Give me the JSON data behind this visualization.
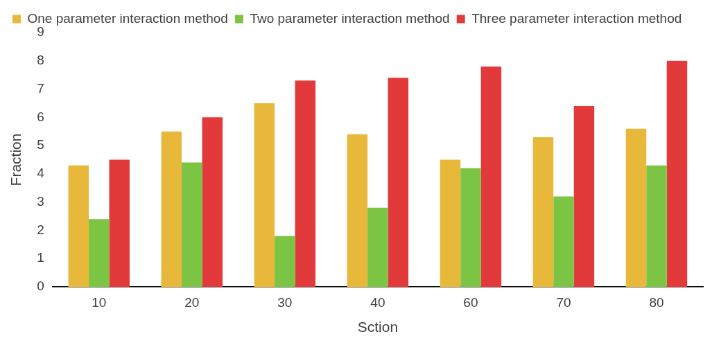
{
  "chart_data": {
    "type": "bar",
    "xlabel": "Sction",
    "ylabel": "Fraction",
    "categories": [
      "10",
      "20",
      "30",
      "40",
      "60",
      "70",
      "80"
    ],
    "series": [
      {
        "name": "One parameter interaction method",
        "color": "#e8b83a",
        "values": [
          4.3,
          5.5,
          6.5,
          5.4,
          4.5,
          5.3,
          5.6
        ]
      },
      {
        "name": "Two parameter interaction method",
        "color": "#7cc444",
        "values": [
          2.4,
          4.4,
          1.8,
          2.8,
          4.2,
          3.2,
          4.3
        ]
      },
      {
        "name": "Three parameter interaction method",
        "color": "#e23a3a",
        "values": [
          4.5,
          6.0,
          7.3,
          7.4,
          7.8,
          6.4,
          8.0
        ]
      }
    ],
    "ylim": [
      0,
      9
    ],
    "yticks": [
      0,
      1,
      2,
      3,
      4,
      5,
      6,
      7,
      8,
      9
    ],
    "grid": false,
    "legend": "top"
  }
}
